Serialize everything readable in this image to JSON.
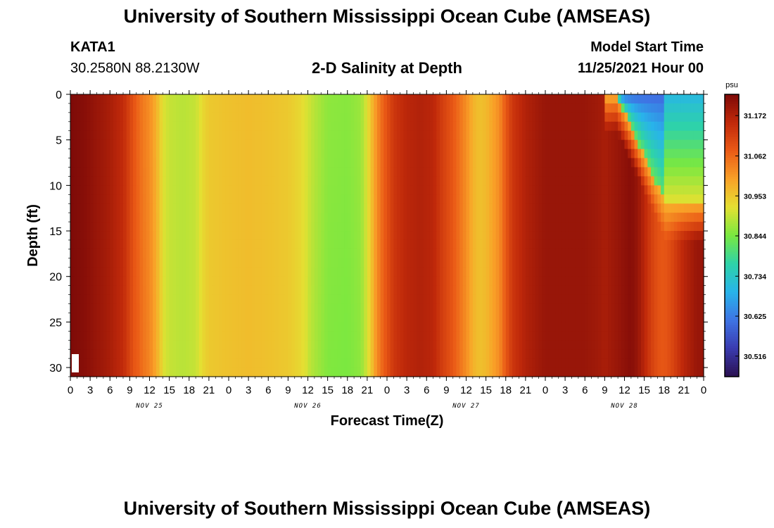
{
  "header": {
    "title": "University of Southern Mississippi Ocean Cube (AMSEAS)",
    "station_id": "KATA1",
    "coordinates": "30.2580N  88.2130W",
    "plot_title": "2-D Salinity at Depth",
    "model_start_label": "Model Start Time",
    "model_start_value": "11/25/2021 Hour 00"
  },
  "footer": {
    "title": "University of Southern Mississippi Ocean Cube (AMSEAS)"
  },
  "chart_data": {
    "type": "heatmap",
    "title": "2-D Salinity at Depth",
    "xlabel": "Forecast Time(Z)",
    "ylabel": "Depth (ft)",
    "x_range_hours": [
      0,
      96
    ],
    "y_range_ft": [
      0,
      31
    ],
    "y_inverted": true,
    "x_tick_labels": [
      "0",
      "3",
      "6",
      "9",
      "12",
      "15",
      "18",
      "21",
      "0",
      "3",
      "6",
      "9",
      "12",
      "15",
      "18",
      "21",
      "0",
      "3",
      "6",
      "9",
      "12",
      "15",
      "18",
      "21",
      "0",
      "3",
      "6",
      "9",
      "12",
      "15",
      "18",
      "21",
      "0"
    ],
    "y_tick_labels": [
      "0",
      "5",
      "10",
      "15",
      "20",
      "25",
      "30"
    ],
    "date_labels": [
      {
        "label": "NOV 25",
        "hour": 12
      },
      {
        "label": "NOV 26",
        "hour": 36
      },
      {
        "label": "NOV 27",
        "hour": 60
      },
      {
        "label": "NOV 28",
        "hour": 84
      }
    ],
    "colorbar": {
      "unit": "psu",
      "min": 30.46,
      "max": 31.23,
      "tick_labels": [
        "31.172",
        "31.062",
        "30.953",
        "30.844",
        "30.734",
        "30.625",
        "30.516"
      ],
      "colors": [
        "#2a1050",
        "#3a3bb0",
        "#3e74e4",
        "#28b4ea",
        "#2ed3a8",
        "#7ae840",
        "#e4e032",
        "#f9a128",
        "#ea5a16",
        "#c0290a",
        "#7e0a08"
      ]
    },
    "surface_profile": [
      [
        0,
        31.23
      ],
      [
        2,
        31.22
      ],
      [
        4,
        31.2
      ],
      [
        6,
        31.18
      ],
      [
        8,
        31.15
      ],
      [
        9,
        31.11
      ],
      [
        10,
        31.07
      ],
      [
        11,
        31.04
      ],
      [
        12,
        31.02
      ],
      [
        13,
        30.98
      ],
      [
        14,
        30.92
      ],
      [
        15,
        30.9
      ],
      [
        17,
        30.89
      ],
      [
        19,
        30.9
      ],
      [
        20,
        30.93
      ],
      [
        21,
        30.95
      ],
      [
        24,
        30.96
      ],
      [
        27,
        30.965
      ],
      [
        30,
        30.96
      ],
      [
        33,
        30.95
      ],
      [
        35,
        30.93
      ],
      [
        37,
        30.89
      ],
      [
        39,
        30.86
      ],
      [
        42,
        30.855
      ],
      [
        44,
        30.87
      ],
      [
        45,
        30.92
      ],
      [
        46,
        30.99
      ],
      [
        47,
        31.05
      ],
      [
        48,
        31.09
      ],
      [
        49,
        31.13
      ],
      [
        51,
        31.16
      ],
      [
        53,
        31.17
      ],
      [
        55,
        31.16
      ],
      [
        56,
        31.13
      ],
      [
        58,
        31.08
      ],
      [
        60,
        31.02
      ],
      [
        61,
        30.98
      ],
      [
        62,
        30.96
      ],
      [
        63,
        30.97
      ],
      [
        65,
        31.02
      ],
      [
        66,
        31.08
      ],
      [
        67,
        31.13
      ],
      [
        69,
        31.17
      ],
      [
        72,
        31.2
      ],
      [
        75,
        31.2
      ],
      [
        78,
        31.2
      ],
      [
        80,
        31.19
      ],
      [
        81,
        31.18
      ]
    ],
    "event_region": {
      "hours": [
        81,
        96
      ],
      "lower_layer_profile": [
        [
          81,
          31.18
        ],
        [
          82,
          31.19
        ],
        [
          83,
          31.2
        ],
        [
          84,
          31.21
        ],
        [
          85,
          31.22
        ],
        [
          86,
          31.2
        ],
        [
          87,
          31.16
        ],
        [
          88,
          31.12
        ],
        [
          89,
          31.09
        ],
        [
          90,
          31.08
        ],
        [
          91,
          31.1
        ],
        [
          92,
          31.13
        ],
        [
          93,
          31.16
        ],
        [
          94,
          31.18
        ],
        [
          95,
          31.2
        ],
        [
          96,
          31.2
        ]
      ],
      "top_min_value": 30.6
    },
    "marker_present": true
  }
}
